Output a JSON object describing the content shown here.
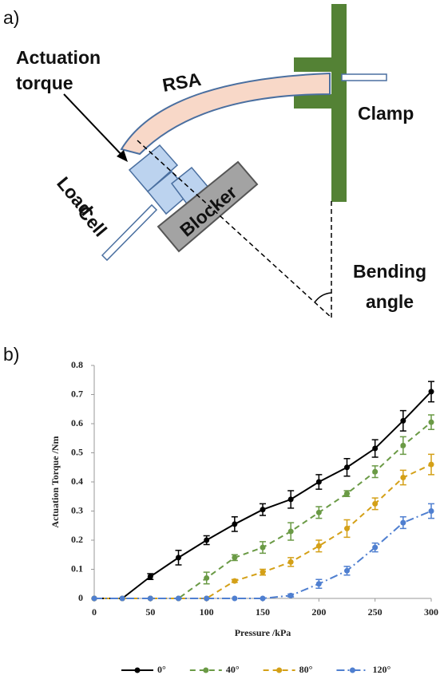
{
  "diagram": {
    "panel_label": "a)",
    "actuation_torque": [
      "Actuation",
      "torque"
    ],
    "rsa": "RSA",
    "clamp": "Clamp",
    "load_cell": [
      "Load",
      "Cell"
    ],
    "blocker": "Blocker",
    "bending_angle": [
      "Bending",
      "angle"
    ]
  },
  "chart_label": "b)",
  "chart_data": {
    "type": "line",
    "x_label": "Pressure /kPa",
    "y_label": "Actuation Torque /Nm",
    "x": [
      0,
      25,
      50,
      75,
      100,
      125,
      150,
      175,
      200,
      225,
      250,
      275,
      300
    ],
    "xlim": [
      0,
      300
    ],
    "xticks": [
      0,
      50,
      100,
      150,
      200,
      250,
      300
    ],
    "ylim": [
      0,
      0.8
    ],
    "yticks": [
      0,
      0.1,
      0.2,
      0.3,
      0.4,
      0.5,
      0.6,
      0.7,
      0.8
    ],
    "legend": "bottom",
    "series": [
      {
        "name": "0°",
        "color": "#000000",
        "line_style": "solid",
        "values": [
          0,
          0,
          0.075,
          0.14,
          0.2,
          0.255,
          0.305,
          0.34,
          0.4,
          0.45,
          0.515,
          0.61,
          0.71
        ],
        "errors": [
          0,
          0,
          0.01,
          0.025,
          0.015,
          0.025,
          0.02,
          0.03,
          0.025,
          0.03,
          0.03,
          0.035,
          0.035
        ]
      },
      {
        "name": "40°",
        "color": "#6a9a45",
        "line_style": "dashed",
        "values": [
          0,
          0,
          0,
          0,
          0.07,
          0.14,
          0.175,
          0.23,
          0.295,
          0.36,
          0.435,
          0.525,
          0.605
        ],
        "errors": [
          0,
          0,
          0,
          0,
          0.02,
          0.01,
          0.02,
          0.03,
          0.02,
          0.01,
          0.02,
          0.03,
          0.025
        ]
      },
      {
        "name": "80°",
        "color": "#d4a017",
        "line_style": "dashed",
        "values": [
          0,
          0,
          0,
          0,
          0,
          0.06,
          0.09,
          0.125,
          0.18,
          0.24,
          0.325,
          0.415,
          0.46
        ],
        "errors": [
          0,
          0,
          0,
          0,
          0,
          0.005,
          0.01,
          0.015,
          0.02,
          0.03,
          0.02,
          0.025,
          0.035
        ]
      },
      {
        "name": "120°",
        "color": "#4f7fd0",
        "line_style": "dashdot",
        "values": [
          0,
          0,
          0,
          0,
          0,
          0,
          0,
          0.01,
          0.05,
          0.095,
          0.175,
          0.26,
          0.3
        ],
        "errors": [
          0,
          0,
          0,
          0,
          0,
          0,
          0,
          0.005,
          0.015,
          0.015,
          0.015,
          0.02,
          0.025
        ]
      }
    ]
  }
}
